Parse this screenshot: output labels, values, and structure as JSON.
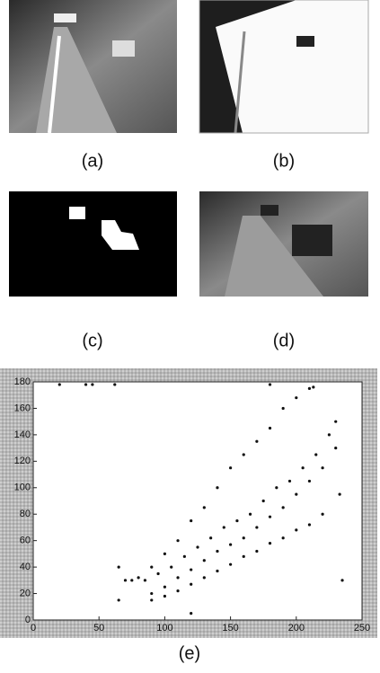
{
  "panels": [
    {
      "label": "(a)"
    },
    {
      "label": "(b)"
    },
    {
      "label": "(c)"
    },
    {
      "label": "(d)"
    }
  ],
  "chart_data": {
    "type": "scatter",
    "caption": "(e)",
    "xlim": [
      0,
      250
    ],
    "ylim": [
      0,
      180
    ],
    "xticks": [
      0,
      50,
      100,
      150,
      200,
      250
    ],
    "yticks": [
      0,
      20,
      40,
      60,
      80,
      100,
      120,
      140,
      160,
      180
    ],
    "series": [
      {
        "color": "#111111",
        "x": [
          20,
          40,
          45,
          62,
          180,
          213,
          65,
          65,
          235,
          120,
          70,
          80,
          90,
          100,
          110,
          120,
          130,
          140,
          150,
          160,
          170,
          180,
          190,
          200,
          210,
          75,
          85,
          95,
          105,
          115,
          125,
          135,
          145,
          155,
          165,
          175,
          185,
          195,
          205,
          215,
          225,
          230,
          90,
          100,
          110,
          120,
          130,
          140,
          150,
          160,
          170,
          180,
          190,
          200,
          210,
          220,
          230,
          90,
          100,
          110,
          120,
          130,
          140,
          150,
          160,
          170,
          180,
          190,
          200,
          210,
          220,
          233
        ],
        "values": [
          178,
          178,
          178,
          178,
          178,
          176,
          40,
          15,
          30,
          5,
          30,
          32,
          40,
          50,
          60,
          75,
          85,
          100,
          115,
          125,
          135,
          145,
          160,
          168,
          175,
          30,
          30,
          35,
          40,
          48,
          55,
          62,
          70,
          75,
          80,
          90,
          100,
          105,
          115,
          125,
          140,
          150,
          20,
          25,
          32,
          38,
          45,
          52,
          57,
          62,
          70,
          78,
          85,
          95,
          105,
          115,
          130,
          15,
          18,
          22,
          27,
          32,
          37,
          42,
          48,
          52,
          58,
          62,
          68,
          72,
          80,
          95
        ]
      }
    ]
  }
}
